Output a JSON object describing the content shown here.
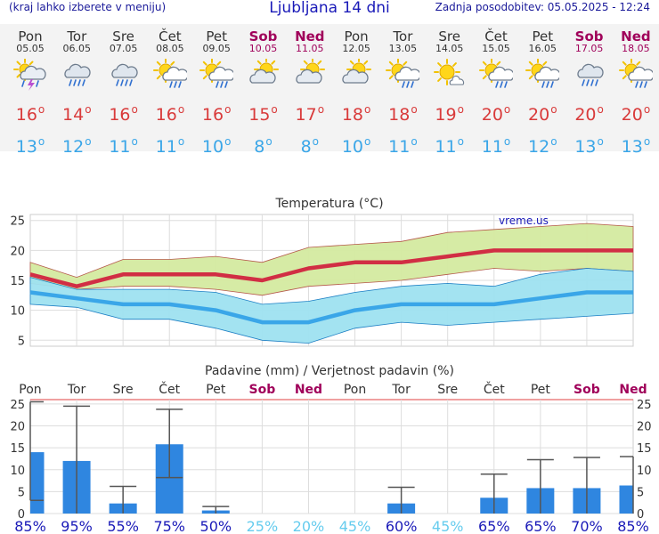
{
  "header": {
    "menu_hint": "(kraj lahko izberete v meniju)",
    "title": "Ljubljana 14 dni",
    "last_update": "Zadnja posodobitev: 05.05.2025 - 12:24"
  },
  "days": [
    {
      "name": "Pon",
      "date": "05.05",
      "icon": "thunderstorm-icon",
      "max": "16",
      "min": "13",
      "weekend": false
    },
    {
      "name": "Tor",
      "date": "06.05",
      "icon": "cloud-rain-icon",
      "max": "14",
      "min": "12",
      "weekend": false
    },
    {
      "name": "Sre",
      "date": "07.05",
      "icon": "cloud-rain-icon",
      "max": "16",
      "min": "11",
      "weekend": false
    },
    {
      "name": "Čet",
      "date": "08.05",
      "icon": "sun-cloud-rain-icon",
      "max": "16",
      "min": "11",
      "weekend": false
    },
    {
      "name": "Pet",
      "date": "09.05",
      "icon": "sun-cloud-rain-icon",
      "max": "16",
      "min": "10",
      "weekend": false
    },
    {
      "name": "Sob",
      "date": "10.05",
      "icon": "partly-cloudy-icon",
      "max": "15",
      "min": "8",
      "weekend": true
    },
    {
      "name": "Ned",
      "date": "11.05",
      "icon": "partly-cloudy-icon",
      "max": "17",
      "min": "8",
      "weekend": true
    },
    {
      "name": "Pon",
      "date": "12.05",
      "icon": "partly-cloudy-icon",
      "max": "18",
      "min": "10",
      "weekend": false
    },
    {
      "name": "Tor",
      "date": "13.05",
      "icon": "sun-cloud-rain-icon",
      "max": "18",
      "min": "11",
      "weekend": false
    },
    {
      "name": "Sre",
      "date": "14.05",
      "icon": "sun-small-cloud-icon",
      "max": "19",
      "min": "11",
      "weekend": false
    },
    {
      "name": "Čet",
      "date": "15.05",
      "icon": "sun-cloud-rain-icon",
      "max": "20",
      "min": "11",
      "weekend": false
    },
    {
      "name": "Pet",
      "date": "16.05",
      "icon": "sun-cloud-rain-icon",
      "max": "20",
      "min": "12",
      "weekend": false
    },
    {
      "name": "Sob",
      "date": "17.05",
      "icon": "cloud-rain-icon",
      "max": "20",
      "min": "13",
      "weekend": true
    },
    {
      "name": "Ned",
      "date": "18.05",
      "icon": "sun-cloud-rain-icon",
      "max": "20",
      "min": "13",
      "weekend": true
    }
  ],
  "colors": {
    "max_line": "#d12e44",
    "max_band": "#d4eaa0",
    "min_line": "#3aa6e8",
    "min_band": "#9ee2f0",
    "bar": "#2f86e0",
    "weekend_text": "#a0005a",
    "prob_blue": "#1a1ab8",
    "prob_light": "#66ccee"
  },
  "chart_data": [
    {
      "type": "line",
      "title": "Temperatura (°C)",
      "watermark": "vreme.us",
      "x": [
        "05.05",
        "06.05",
        "07.05",
        "08.05",
        "09.05",
        "10.05",
        "11.05",
        "12.05",
        "13.05",
        "14.05",
        "15.05",
        "16.05",
        "17.05",
        "18.05"
      ],
      "ylim": [
        4,
        26
      ],
      "yticks": [
        5,
        10,
        15,
        20,
        25
      ],
      "series": [
        {
          "name": "max",
          "values": [
            16,
            14,
            16,
            16,
            16,
            15,
            17,
            18,
            18,
            19,
            20,
            20,
            20,
            20
          ]
        },
        {
          "name": "min",
          "values": [
            13,
            12,
            11,
            11,
            10,
            8,
            8,
            10,
            11,
            11,
            11,
            12,
            13,
            13
          ]
        }
      ],
      "max_band_upper": [
        18,
        15.5,
        18.5,
        18.5,
        19,
        18,
        20.5,
        21,
        21.5,
        23,
        23.5,
        24,
        24.5,
        24
      ],
      "max_band_lower": [
        14.5,
        13.5,
        14,
        14,
        13.5,
        12.5,
        14,
        14.5,
        15,
        16,
        17,
        16.5,
        17,
        16.5
      ],
      "min_band_upper": [
        15.5,
        13.5,
        13.5,
        13.5,
        13,
        11,
        11.5,
        13,
        14,
        14.5,
        14,
        16,
        17,
        16.5
      ],
      "min_band_lower": [
        11,
        10.5,
        8.5,
        8.5,
        7,
        5,
        4.5,
        7,
        8,
        7.5,
        8,
        8.5,
        9,
        9.5
      ]
    },
    {
      "type": "bar",
      "title": "Padavine (mm) / Verjetnost padavin (%)",
      "categories": [
        "Pon",
        "Tor",
        "Sre",
        "Čet",
        "Pet",
        "Sob",
        "Ned",
        "Pon",
        "Tor",
        "Sre",
        "Čet",
        "Pet",
        "Sob",
        "Ned"
      ],
      "weekend": [
        false,
        false,
        false,
        false,
        false,
        true,
        true,
        false,
        false,
        false,
        false,
        false,
        true,
        true
      ],
      "ylim": [
        0,
        26
      ],
      "yticks": [
        0,
        5,
        10,
        15,
        20,
        25
      ],
      "values": [
        14,
        12,
        2.3,
        15.8,
        0.7,
        0,
        0,
        0,
        2.3,
        0,
        3.6,
        5.8,
        5.8,
        6.4
      ],
      "err_high": [
        25.5,
        24.5,
        6.2,
        23.8,
        1.6,
        null,
        null,
        null,
        6,
        null,
        9,
        12.3,
        12.8,
        13
      ],
      "err_low": [
        3,
        0,
        0,
        8.2,
        0,
        null,
        null,
        null,
        0,
        null,
        0,
        0,
        0,
        0
      ],
      "probability": [
        "85%",
        "95%",
        "55%",
        "75%",
        "50%",
        "25%",
        "20%",
        "45%",
        "60%",
        "45%",
        "65%",
        "65%",
        "70%",
        "85%"
      ],
      "probability_color": [
        "blue",
        "blue",
        "blue",
        "blue",
        "blue",
        "light",
        "light",
        "light",
        "blue",
        "light",
        "blue",
        "blue",
        "blue",
        "blue"
      ]
    }
  ]
}
